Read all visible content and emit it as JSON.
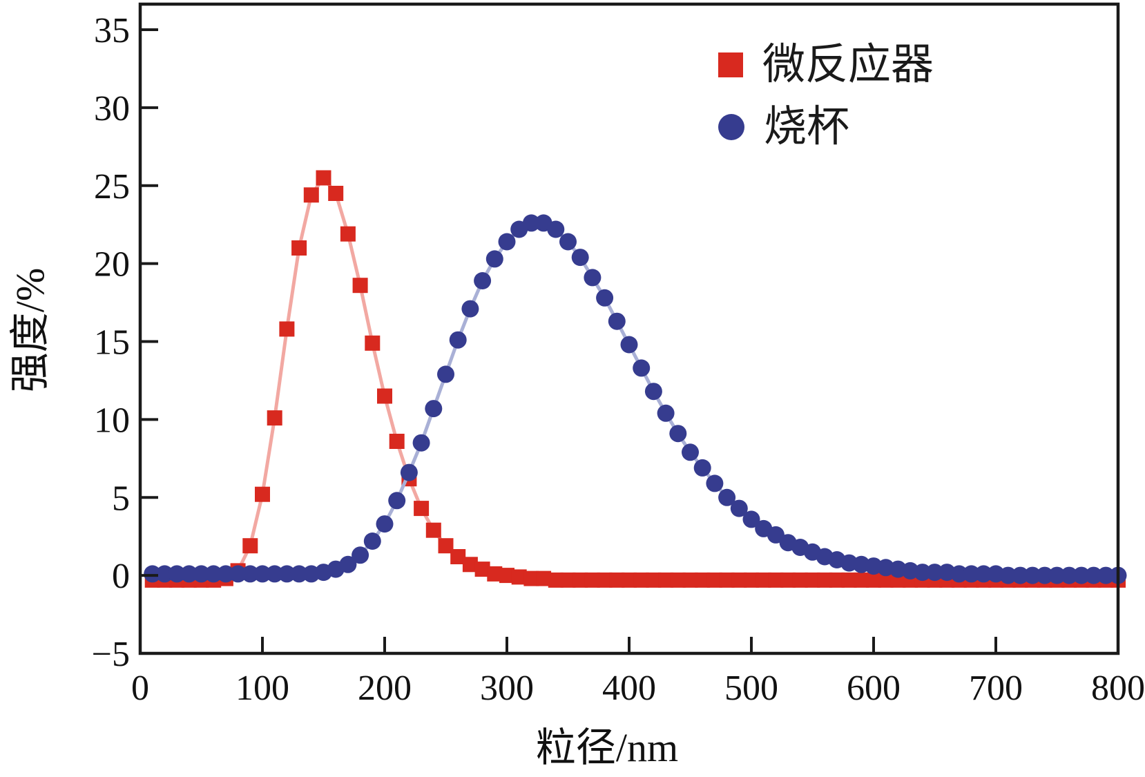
{
  "chart_data": {
    "type": "line",
    "title": "",
    "xlabel": "粒径/nm",
    "ylabel": "强度/%",
    "xlim": [
      0,
      800
    ],
    "ylim": [
      -5,
      35
    ],
    "xticks": [
      0,
      100,
      200,
      300,
      400,
      500,
      600,
      700,
      800
    ],
    "xtick_labels": [
      "0",
      "100",
      "200",
      "300",
      "400",
      "500",
      "600",
      "700",
      "800"
    ],
    "yticks": [
      -5,
      0,
      5,
      10,
      15,
      20,
      25,
      30,
      35
    ],
    "ytick_labels": [
      "−5",
      "0",
      "5",
      "10",
      "15",
      "20",
      "25",
      "30",
      "35"
    ],
    "grid": false,
    "legend_position": "upper-right-inside",
    "axis_color": "#1a1a1a",
    "series": [
      {
        "name": "微反应器",
        "marker": "square",
        "marker_color": "#d8291f",
        "line_color": "#f2a8a2",
        "marker_size": 22,
        "x_start": 10,
        "x_step": 10,
        "peak": {
          "x": 150,
          "y": 25.5
        },
        "y": [
          -0.3,
          -0.3,
          -0.3,
          -0.3,
          -0.3,
          -0.3,
          -0.2,
          0.3,
          1.9,
          5.2,
          10.1,
          15.8,
          21.0,
          24.4,
          25.5,
          24.5,
          21.9,
          18.6,
          14.9,
          11.5,
          8.6,
          6.2,
          4.3,
          2.9,
          1.9,
          1.2,
          0.7,
          0.4,
          0.1,
          0.0,
          -0.1,
          -0.2,
          -0.2,
          -0.3,
          -0.3,
          -0.3,
          -0.3,
          -0.3,
          -0.3,
          -0.3,
          -0.3,
          -0.3,
          -0.3,
          -0.3,
          -0.3,
          -0.3,
          -0.3,
          -0.3,
          -0.3,
          -0.3,
          -0.3,
          -0.3,
          -0.3,
          -0.3,
          -0.3,
          -0.3,
          -0.3,
          -0.3,
          -0.3,
          -0.3,
          -0.3,
          -0.3,
          -0.3,
          -0.3,
          -0.3,
          -0.3,
          -0.3,
          -0.3,
          -0.3,
          -0.3,
          -0.3,
          -0.3,
          -0.3,
          -0.3,
          -0.3,
          -0.3,
          -0.3,
          -0.3,
          -0.3,
          -0.3
        ]
      },
      {
        "name": "烧杯",
        "marker": "circle",
        "marker_color": "#363c8f",
        "line_color": "#a9b0d6",
        "marker_size": 25,
        "x_start": 10,
        "x_step": 10,
        "peak": {
          "x": 325,
          "y": 22.6
        },
        "y": [
          0.1,
          0.1,
          0.1,
          0.1,
          0.1,
          0.1,
          0.1,
          0.1,
          0.1,
          0.1,
          0.1,
          0.1,
          0.1,
          0.1,
          0.2,
          0.4,
          0.7,
          1.3,
          2.2,
          3.3,
          4.8,
          6.6,
          8.5,
          10.7,
          12.9,
          15.1,
          17.1,
          18.9,
          20.3,
          21.4,
          22.2,
          22.6,
          22.6,
          22.2,
          21.4,
          20.4,
          19.1,
          17.8,
          16.3,
          14.8,
          13.3,
          11.8,
          10.4,
          9.1,
          7.9,
          6.9,
          5.9,
          5.0,
          4.3,
          3.6,
          3.0,
          2.6,
          2.1,
          1.8,
          1.5,
          1.2,
          1.0,
          0.8,
          0.7,
          0.6,
          0.5,
          0.4,
          0.3,
          0.2,
          0.2,
          0.2,
          0.1,
          0.1,
          0.1,
          0.1,
          0.0,
          0.0,
          0.0,
          0.0,
          0.0,
          0.0,
          0.0,
          0.0,
          0.0,
          0.0
        ]
      }
    ]
  }
}
